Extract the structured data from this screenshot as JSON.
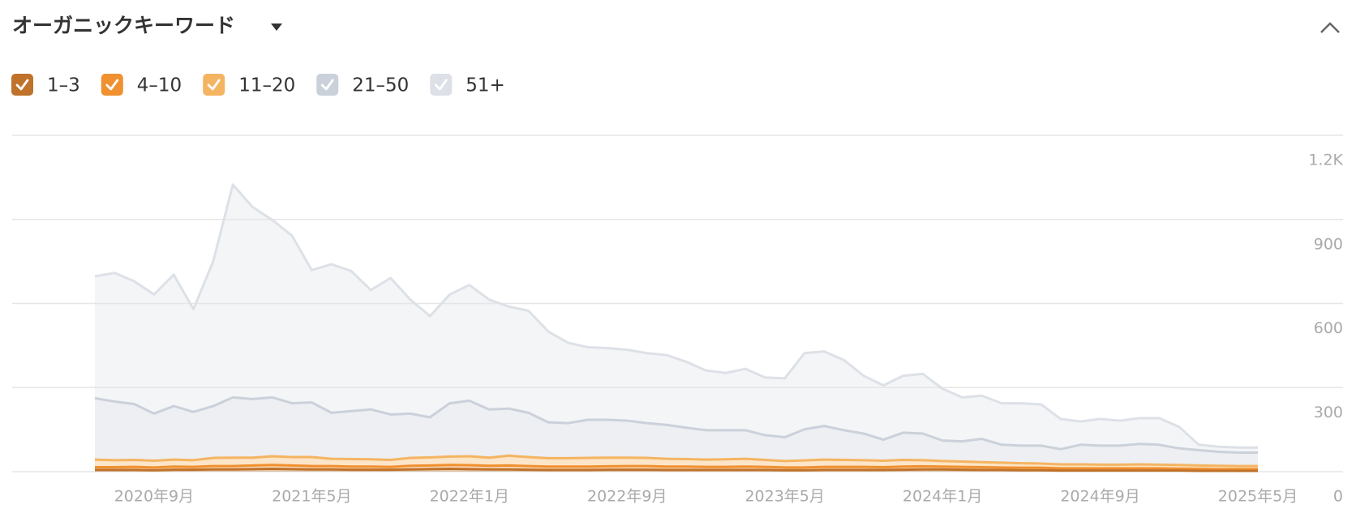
{
  "chart_data": {
    "type": "stacked-area",
    "title": "オーガニックキーワード",
    "x": [
      "2020-06",
      "2020-07",
      "2020-08",
      "2020-09",
      "2020-10",
      "2020-11",
      "2020-12",
      "2021-01",
      "2021-02",
      "2021-03",
      "2021-04",
      "2021-05",
      "2021-06",
      "2021-07",
      "2021-08",
      "2021-09",
      "2021-10",
      "2021-11",
      "2021-12",
      "2022-01",
      "2022-02",
      "2022-03",
      "2022-04",
      "2022-05",
      "2022-06",
      "2022-07",
      "2022-08",
      "2022-09",
      "2022-10",
      "2022-11",
      "2022-12",
      "2023-01",
      "2023-02",
      "2023-03",
      "2023-04",
      "2023-05",
      "2023-06",
      "2023-07",
      "2023-08",
      "2023-09",
      "2023-10",
      "2023-11",
      "2023-12",
      "2024-01",
      "2024-02",
      "2024-03",
      "2024-04",
      "2024-05",
      "2024-06",
      "2024-07",
      "2024-08",
      "2024-09",
      "2024-10",
      "2024-11",
      "2024-12",
      "2025-01",
      "2025-02",
      "2025-03",
      "2025-04",
      "2025-05"
    ],
    "xticks": [
      {
        "value": "2020-09",
        "label": "2020年9月"
      },
      {
        "value": "2021-05",
        "label": "2021年5月"
      },
      {
        "value": "2022-01",
        "label": "2022年1月"
      },
      {
        "value": "2022-09",
        "label": "2022年9月"
      },
      {
        "value": "2023-05",
        "label": "2023年5月"
      },
      {
        "value": "2024-01",
        "label": "2024年1月"
      },
      {
        "value": "2024-09",
        "label": "2024年9月"
      },
      {
        "value": "2025-05",
        "label": "2025年5月"
      }
    ],
    "ylim": [
      0,
      1200
    ],
    "yticks": [
      0,
      300,
      600,
      900,
      {
        "value": 1200,
        "label": "1.2K"
      }
    ],
    "grid": true,
    "series": [
      {
        "name": "1–3",
        "color": "#c0722a",
        "values": [
          6,
          6,
          6,
          5,
          7,
          7,
          8,
          8,
          9,
          10,
          9,
          8,
          8,
          7,
          7,
          7,
          8,
          9,
          10,
          9,
          8,
          8,
          7,
          6,
          6,
          6,
          7,
          7,
          7,
          6,
          6,
          6,
          6,
          6,
          6,
          5,
          5,
          6,
          6,
          6,
          6,
          7,
          8,
          8,
          7,
          6,
          6,
          5,
          5,
          4,
          4,
          4,
          4,
          4,
          4,
          4,
          3,
          3,
          3,
          3
        ]
      },
      {
        "name": "4–10",
        "color": "#f0902f",
        "values": [
          10,
          10,
          11,
          10,
          11,
          10,
          12,
          12,
          13,
          14,
          13,
          12,
          12,
          11,
          11,
          10,
          13,
          13,
          14,
          14,
          13,
          14,
          13,
          12,
          12,
          12,
          12,
          13,
          13,
          12,
          12,
          11,
          11,
          12,
          11,
          10,
          10,
          11,
          11,
          11,
          10,
          11,
          11,
          10,
          10,
          10,
          9,
          9,
          9,
          8,
          8,
          8,
          8,
          8,
          8,
          7,
          7,
          6,
          6,
          6
        ]
      },
      {
        "name": "11–20",
        "color": "#f5b461",
        "values": [
          27,
          25,
          25,
          24,
          25,
          24,
          29,
          30,
          28,
          31,
          30,
          32,
          26,
          27,
          26,
          25,
          28,
          29,
          30,
          32,
          29,
          35,
          32,
          30,
          30,
          31,
          31,
          30,
          29,
          28,
          27,
          26,
          27,
          28,
          25,
          23,
          25,
          26,
          25,
          24,
          23,
          24,
          22,
          20,
          19,
          18,
          17,
          16,
          15,
          14,
          14,
          13,
          13,
          14,
          13,
          13,
          12,
          12,
          11,
          11
        ]
      },
      {
        "name": "21–50",
        "color": "#cbd1da",
        "values": [
          219,
          209,
          199,
          168,
          191,
          172,
          185,
          215,
          209,
          210,
          192,
          195,
          164,
          171,
          178,
          162,
          158,
          143,
          190,
          198,
          172,
          168,
          158,
          128,
          125,
          136,
          135,
          132,
          124,
          121,
          112,
          105,
          104,
          102,
          88,
          85,
          111,
          120,
          106,
          95,
          75,
          97,
          95,
          73,
          72,
          83,
          64,
          63,
          64,
          54,
          70,
          68,
          68,
          73,
          71,
          59,
          55,
          50,
          48,
          48
        ]
      },
      {
        "name": "51+",
        "color": "#dde1e7",
        "values": [
          435,
          459,
          438,
          425,
          469,
          367,
          516,
          759,
          685,
          633,
          598,
          472,
          530,
          500,
          426,
          487,
          407,
          361,
          388,
          413,
          392,
          364,
          364,
          324,
          287,
          259,
          256,
          253,
          250,
          249,
          235,
          213,
          204,
          219,
          206,
          210,
          272,
          266,
          250,
          206,
          194,
          203,
          213,
          185,
          157,
          154,
          148,
          151,
          147,
          108,
          83,
          95,
          89,
          92,
          95,
          77,
          19,
          18,
          18,
          18
        ]
      }
    ]
  }
}
